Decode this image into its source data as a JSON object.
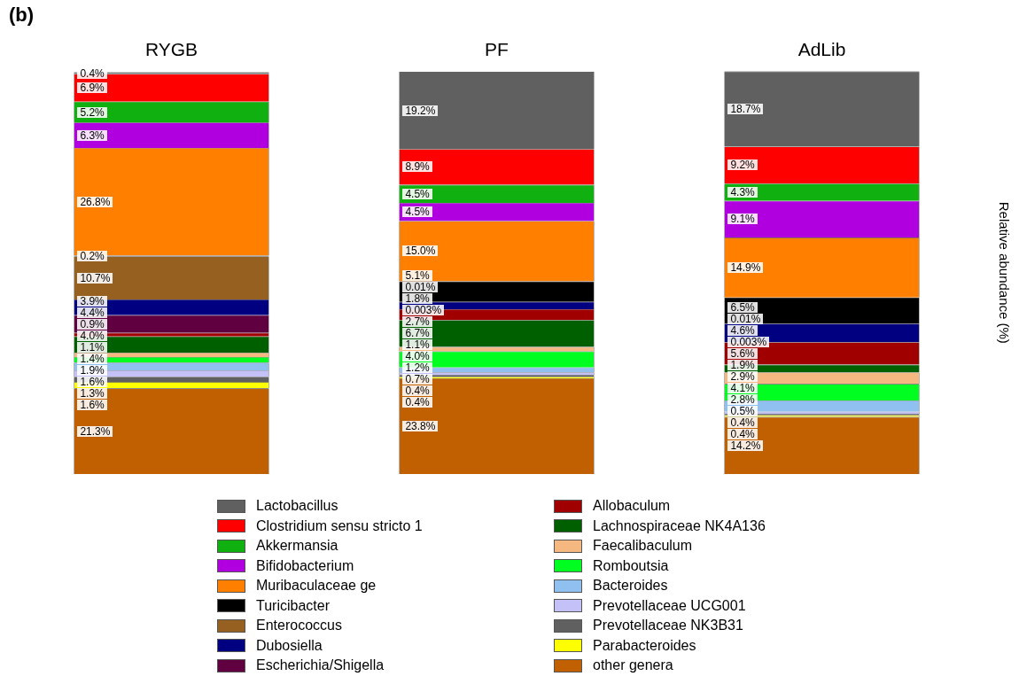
{
  "chart_data": {
    "type": "bar",
    "title": "(b)",
    "ylabel": "Relative abundance (%)",
    "categories": [
      "RYGB",
      "PF",
      "AdLib"
    ],
    "stacked": true,
    "tick_labels": "x",
    "legend": "bottom",
    "series": [
      {
        "name": "other genera",
        "color": "#c06000",
        "values": [
          21.3,
          23.8,
          14.2
        ],
        "value_labels": [
          "21.3%",
          "23.8%",
          "14.2%"
        ]
      },
      {
        "name": "Parabacteroides",
        "color": "#ffff00",
        "values": [
          1.6,
          0.4,
          0.4
        ],
        "value_labels": [
          "1.6%",
          "0.4%",
          "0.4%"
        ]
      },
      {
        "name": "Prevotellaceae NK3B31",
        "color": "#606060",
        "values": [
          1.3,
          0.4,
          0.4
        ],
        "value_labels": [
          "1.3%",
          "0.4%",
          "0.4%"
        ]
      },
      {
        "name": "Prevotellaceae UCG001",
        "color": "#c4c0f8",
        "values": [
          1.6,
          0.7,
          0.5
        ],
        "value_labels": [
          "1.6%",
          "0.7%",
          "0.5%"
        ]
      },
      {
        "name": "Bacteroides",
        "color": "#90c0f0",
        "values": [
          1.9,
          1.2,
          2.8
        ],
        "value_labels": [
          "1.9%",
          "1.2%",
          "2.8%"
        ]
      },
      {
        "name": "Romboutsia",
        "color": "#00ff20",
        "values": [
          1.4,
          4.0,
          4.1
        ],
        "value_labels": [
          "1.4%",
          "4.0%",
          "4.1%"
        ]
      },
      {
        "name": "Faecalibaculum",
        "color": "#f4b880",
        "values": [
          1.1,
          1.1,
          2.9
        ],
        "value_labels": [
          "1.1%",
          "1.1%",
          "2.9%"
        ]
      },
      {
        "name": "Lachnospiraceae NK4A136",
        "color": "#006000",
        "values": [
          4.0,
          6.7,
          1.9
        ],
        "value_labels": [
          "4.0%",
          "6.7%",
          "1.9%"
        ]
      },
      {
        "name": "Allobaculum",
        "color": "#a00000",
        "values": [
          0.9,
          2.7,
          5.6
        ],
        "value_labels": [
          "0.9%",
          "2.7%",
          "5.6%"
        ]
      },
      {
        "name": "Escherichia/Shigella",
        "color": "#600040",
        "values": [
          4.4,
          0.003,
          0.003
        ],
        "value_labels": [
          "4.4%",
          "0.003%",
          "0.003%"
        ]
      },
      {
        "name": "Dubosiella",
        "color": "#000080",
        "values": [
          3.9,
          1.8,
          4.6
        ],
        "value_labels": [
          "3.9%",
          "1.8%",
          "4.6%"
        ]
      },
      {
        "name": "Enterococcus",
        "color": "#956020",
        "values": [
          10.7,
          0.01,
          0.01
        ],
        "value_labels": [
          "10.7%",
          "0.01%",
          "0.01%"
        ]
      },
      {
        "name": "Turicibacter",
        "color": "#000000",
        "values": [
          0.2,
          5.1,
          6.5
        ],
        "value_labels": [
          "0.2%",
          "5.1%",
          "6.5%"
        ]
      },
      {
        "name": "Muribaculaceae ge",
        "color": "#ff8000",
        "values": [
          26.8,
          15.0,
          14.9
        ],
        "value_labels": [
          "26.8%",
          "15.0%",
          "14.9%"
        ]
      },
      {
        "name": "Bifidobacterium",
        "color": "#b000e0",
        "values": [
          6.3,
          4.5,
          9.1
        ],
        "value_labels": [
          "6.3%",
          "4.5%",
          "9.1%"
        ]
      },
      {
        "name": "Akkermansia",
        "color": "#10b010",
        "values": [
          5.2,
          4.5,
          4.3
        ],
        "value_labels": [
          "5.2%",
          "4.5%",
          "4.3%"
        ]
      },
      {
        "name": "Clostridium sensu stricto 1",
        "color": "#ff0000",
        "values": [
          6.9,
          8.9,
          9.2
        ],
        "value_labels": [
          "6.9%",
          "8.9%",
          "9.2%"
        ]
      },
      {
        "name": "Lactobacillus",
        "color": "#606060",
        "values": [
          0.4,
          19.2,
          18.7
        ],
        "value_labels": [
          "0.4%",
          "19.2%",
          "18.7%"
        ]
      }
    ]
  }
}
